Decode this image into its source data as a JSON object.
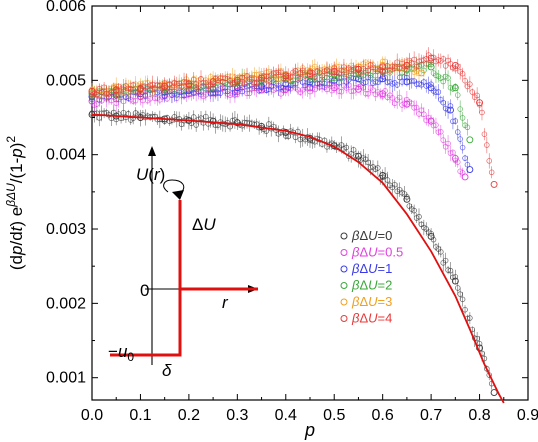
{
  "chart_data": {
    "type": "scatter",
    "title": "",
    "xlabel": "p",
    "ylabel": "(dp/dt) e^{βΔU}/(1-p)^2",
    "ylabel_parts": {
      "prefix": "(d",
      "p1": "p",
      "mid": "/d",
      "t": "t",
      "close": ") e",
      "sup": "βΔU",
      "tail": "/(1-",
      "p2": "p",
      "sq": ")",
      "two": "2"
    },
    "xlim": [
      0.0,
      0.9
    ],
    "ylim": [
      0.0007,
      0.006
    ],
    "xticks": [
      "0.0",
      "0.1",
      "0.2",
      "0.3",
      "0.4",
      "0.5",
      "0.6",
      "0.7",
      "0.8",
      "0.9"
    ],
    "yticks": [
      "0.001",
      "0.002",
      "0.003",
      "0.004",
      "0.005",
      "0.006"
    ],
    "series": [
      {
        "name": "βΔU=0",
        "beta_prefix": "β",
        "delta_text": "Δ",
        "U_text": "U",
        "value_text": "=0",
        "color": "#3a3a3a",
        "x": [
          0.0,
          0.05,
          0.1,
          0.15,
          0.2,
          0.25,
          0.3,
          0.35,
          0.4,
          0.45,
          0.5,
          0.55,
          0.6,
          0.65,
          0.7,
          0.75,
          0.8,
          0.83
        ],
        "y": [
          0.00454,
          0.00452,
          0.0045,
          0.00448,
          0.00446,
          0.00445,
          0.00443,
          0.00438,
          0.0043,
          0.00422,
          0.00412,
          0.00398,
          0.00372,
          0.0034,
          0.0029,
          0.0023,
          0.0014,
          0.0008
        ]
      },
      {
        "name": "βΔU=0.5",
        "beta_prefix": "β",
        "delta_text": "Δ",
        "U_text": "U",
        "value_text": "=0.5",
        "color": "#e040e0",
        "x": [
          0.0,
          0.05,
          0.1,
          0.15,
          0.2,
          0.25,
          0.3,
          0.35,
          0.4,
          0.45,
          0.5,
          0.55,
          0.6,
          0.65,
          0.7,
          0.75,
          0.77
        ],
        "y": [
          0.00472,
          0.00475,
          0.00478,
          0.0048,
          0.00482,
          0.00483,
          0.00485,
          0.00487,
          0.00488,
          0.0049,
          0.0049,
          0.00488,
          0.00482,
          0.00468,
          0.00445,
          0.00395,
          0.0037
        ]
      },
      {
        "name": "βΔU=1",
        "beta_prefix": "β",
        "delta_text": "Δ",
        "U_text": "U",
        "value_text": "=1",
        "color": "#3a3ae8",
        "x": [
          0.0,
          0.05,
          0.1,
          0.15,
          0.2,
          0.25,
          0.3,
          0.35,
          0.4,
          0.45,
          0.5,
          0.55,
          0.6,
          0.65,
          0.7,
          0.74,
          0.78
        ],
        "y": [
          0.00478,
          0.0048,
          0.00482,
          0.00484,
          0.00486,
          0.00488,
          0.0049,
          0.00492,
          0.00495,
          0.00498,
          0.005,
          0.00502,
          0.00502,
          0.00498,
          0.0049,
          0.0046,
          0.0038
        ]
      },
      {
        "name": "βΔU=2",
        "beta_prefix": "β",
        "delta_text": "Δ",
        "U_text": "U",
        "value_text": "=2",
        "color": "#3aa83a",
        "x": [
          0.0,
          0.05,
          0.1,
          0.15,
          0.2,
          0.25,
          0.3,
          0.35,
          0.4,
          0.45,
          0.5,
          0.55,
          0.6,
          0.65,
          0.7,
          0.75,
          0.78
        ],
        "y": [
          0.00482,
          0.00485,
          0.00488,
          0.0049,
          0.00492,
          0.00495,
          0.00498,
          0.005,
          0.00503,
          0.00506,
          0.00508,
          0.0051,
          0.00512,
          0.00515,
          0.00518,
          0.0049,
          0.0042
        ]
      },
      {
        "name": "βΔU=3",
        "beta_prefix": "β",
        "delta_text": "Δ",
        "U_text": "U",
        "value_text": "=3",
        "color": "#f0a020",
        "x": [
          0.0,
          0.05,
          0.1,
          0.15,
          0.2,
          0.25,
          0.3,
          0.35,
          0.4,
          0.45,
          0.5,
          0.55,
          0.6,
          0.65,
          0.68
        ],
        "y": [
          0.00486,
          0.00488,
          0.0049,
          0.00493,
          0.00496,
          0.00499,
          0.00502,
          0.00505,
          0.00508,
          0.00512,
          0.00515,
          0.00518,
          0.0052,
          0.0052,
          0.0051
        ]
      },
      {
        "name": "βΔU=4",
        "beta_prefix": "β",
        "delta_text": "Δ",
        "U_text": "U",
        "value_text": "=4",
        "color": "#e83a3a",
        "x": [
          0.0,
          0.05,
          0.1,
          0.15,
          0.2,
          0.25,
          0.3,
          0.35,
          0.4,
          0.45,
          0.5,
          0.55,
          0.6,
          0.65,
          0.7,
          0.75,
          0.8,
          0.83
        ],
        "y": [
          0.00485,
          0.00487,
          0.00489,
          0.00492,
          0.00495,
          0.00498,
          0.005,
          0.00503,
          0.00506,
          0.00509,
          0.00512,
          0.00515,
          0.00518,
          0.0052,
          0.0053,
          0.0052,
          0.0047,
          0.0036
        ]
      }
    ],
    "fit_line": {
      "color": "#e01010",
      "x": [
        0.0,
        0.1,
        0.2,
        0.3,
        0.4,
        0.45,
        0.5,
        0.55,
        0.6,
        0.65,
        0.7,
        0.75,
        0.78,
        0.81,
        0.84,
        0.85
      ],
      "y": [
        0.00454,
        0.0045,
        0.00446,
        0.00441,
        0.00432,
        0.00424,
        0.00411,
        0.0039,
        0.00362,
        0.0032,
        0.0027,
        0.0021,
        0.00165,
        0.00118,
        0.00078,
        0.00066
      ]
    },
    "legend": {
      "position": "right"
    },
    "inset": {
      "U_label": "U",
      "r_open": "(",
      "r_var": "r",
      "r_close": ")",
      "delta_U_label": "ΔU",
      "delta_U_delta": "Δ",
      "delta_U_U": "U",
      "zero_label": "0",
      "r_axis_label": "r",
      "u0_minus": "−",
      "u0_var": "u",
      "u0_sub": "0",
      "delta_label": "δ"
    }
  }
}
